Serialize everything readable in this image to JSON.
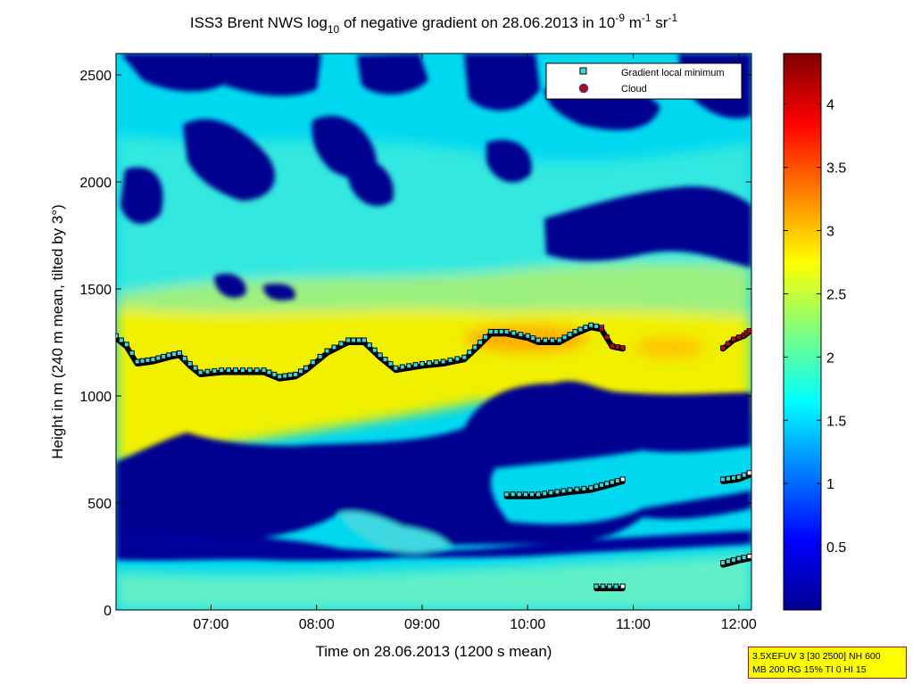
{
  "chart_data": {
    "type": "heatmap",
    "title": {
      "prefix": "ISS3 Brent NWS log",
      "log_base": "10",
      "middle": " of negative gradient on 28.06.2013 in 10",
      "exp1": "-9",
      "unit1": " m",
      "exp2": "-1",
      "unit2": " sr",
      "exp3": "-1"
    },
    "xlabel": "Time on 28.06.2013 (1200 s mean)",
    "ylabel": "Height in m (240 m mean, tilted by 3°)",
    "xlim": [
      6.1,
      12.12
    ],
    "ylim": [
      0,
      2600
    ],
    "x_ticks": [
      7,
      8,
      9,
      10,
      11,
      12
    ],
    "x_tick_labels": [
      "07:00",
      "08:00",
      "09:00",
      "10:00",
      "11:00",
      "12:00"
    ],
    "y_ticks": [
      0,
      500,
      1000,
      1500,
      2000,
      2500
    ],
    "y_tick_labels": [
      "0",
      "500",
      "1000",
      "1500",
      "2000",
      "2500"
    ],
    "colorbar": {
      "range": [
        0,
        4.4
      ],
      "ticks": [
        0.5,
        1,
        1.5,
        2,
        2.5,
        3,
        3.5,
        4
      ],
      "tick_labels": [
        "0.5",
        "1",
        "1.5",
        "2",
        "2.5",
        "3",
        "3.5",
        "4"
      ],
      "colormap": "jet"
    },
    "legend": {
      "location": "top-right",
      "entries": [
        {
          "label": "Gradient local minimum",
          "marker": "square",
          "color": "#33dddd"
        },
        {
          "label": "Cloud",
          "marker": "circle",
          "color": "#cc0000"
        }
      ]
    },
    "series": [
      {
        "name": "Gradient local minimum",
        "segments": [
          [
            [
              6.1,
              1270
            ],
            [
              6.2,
              1230
            ],
            [
              6.3,
              1150
            ],
            [
              6.45,
              1160
            ],
            [
              6.6,
              1180
            ],
            [
              6.7,
              1190
            ],
            [
              6.8,
              1140
            ],
            [
              6.9,
              1100
            ],
            [
              7.1,
              1110
            ],
            [
              7.3,
              1110
            ],
            [
              7.5,
              1110
            ],
            [
              7.65,
              1080
            ],
            [
              7.8,
              1090
            ],
            [
              7.9,
              1120
            ],
            [
              8.1,
              1200
            ],
            [
              8.3,
              1250
            ],
            [
              8.45,
              1250
            ],
            [
              8.6,
              1180
            ],
            [
              8.75,
              1120
            ],
            [
              9.0,
              1140
            ],
            [
              9.2,
              1150
            ],
            [
              9.4,
              1170
            ],
            [
              9.55,
              1240
            ],
            [
              9.65,
              1290
            ],
            [
              9.8,
              1290
            ],
            [
              10.0,
              1270
            ],
            [
              10.1,
              1250
            ],
            [
              10.3,
              1250
            ],
            [
              10.45,
              1290
            ],
            [
              10.6,
              1320
            ],
            [
              10.7,
              1310
            ]
          ],
          [
            [
              9.8,
              530
            ],
            [
              10.1,
              530
            ],
            [
              10.4,
              550
            ],
            [
              10.6,
              560
            ],
            [
              10.75,
              580
            ],
            [
              10.9,
              600
            ]
          ],
          [
            [
              10.65,
              100
            ],
            [
              10.9,
              100
            ]
          ],
          [
            [
              11.85,
              600
            ],
            [
              12.0,
              610
            ],
            [
              12.1,
              630
            ]
          ],
          [
            [
              11.85,
              210
            ],
            [
              12.0,
              230
            ],
            [
              12.1,
              240
            ]
          ]
        ]
      },
      {
        "name": "Cloud",
        "segments": [
          [
            [
              10.7,
              1310
            ],
            [
              10.8,
              1230
            ],
            [
              10.9,
              1220
            ]
          ],
          [
            [
              11.85,
              1220
            ],
            [
              11.95,
              1260
            ],
            [
              12.05,
              1280
            ],
            [
              12.1,
              1300
            ]
          ]
        ]
      }
    ]
  },
  "info_box": {
    "line1": "3.5XEFUV 3 [30 2500] NH 600",
    "line2": "MB 200 RG 15% TI 0 HI 15"
  }
}
